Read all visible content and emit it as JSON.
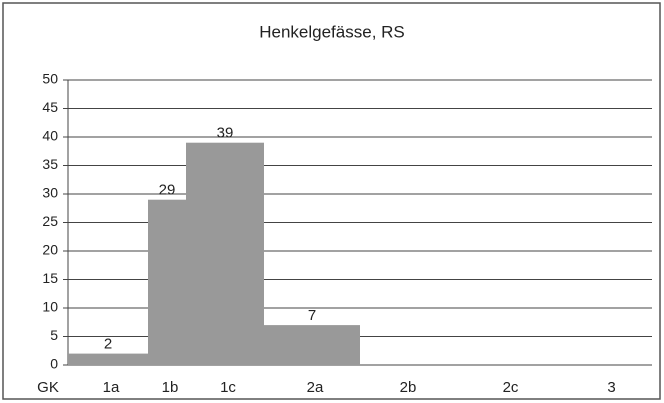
{
  "chart_data": {
    "type": "bar",
    "title": "Henkelgefässe, RS",
    "xlabel": "GK",
    "categories": [
      "1a",
      "1b",
      "1c",
      "2a",
      "2b",
      "2c",
      "3"
    ],
    "values": [
      2,
      29,
      39,
      7,
      0,
      0,
      0
    ],
    "color": "#999999",
    "ylim": [
      0,
      50
    ],
    "yticks": [
      0,
      5,
      10,
      15,
      20,
      25,
      30,
      35,
      40,
      45,
      50
    ],
    "grid": true
  }
}
